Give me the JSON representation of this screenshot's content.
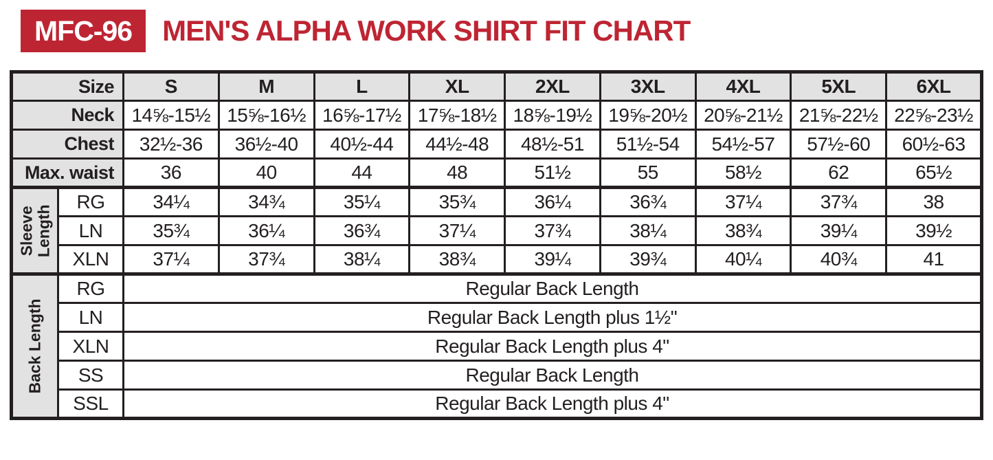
{
  "colors": {
    "accent": "#be2533",
    "cell_gray": "#e2e2e2",
    "border": "#231f20",
    "text": "#231f20"
  },
  "chart_data": {
    "type": "table",
    "code": "MFC-96",
    "title": "MEN'S ALPHA WORK SHIRT FIT CHART",
    "size_label": "Size",
    "columns": [
      "S",
      "M",
      "L",
      "XL",
      "2XL",
      "3XL",
      "4XL",
      "5XL",
      "6XL"
    ],
    "measurement_rows": [
      {
        "label": "Neck",
        "values": [
          "14⅝-15½",
          "15⅝-16½",
          "16⅝-17½",
          "17⅝-18½",
          "18⅝-19½",
          "19⅝-20½",
          "20⅝-21½",
          "21⅝-22½",
          "22⅝-23½"
        ]
      },
      {
        "label": "Chest",
        "values": [
          "32½-36",
          "36½-40",
          "40½-44",
          "44½-48",
          "48½-51",
          "51½-54",
          "54½-57",
          "57½-60",
          "60½-63"
        ]
      },
      {
        "label": "Max. waist",
        "values": [
          "36",
          "40",
          "44",
          "48",
          "51½",
          "55",
          "58½",
          "62",
          "65½"
        ]
      }
    ],
    "sleeve_section": {
      "label": "Sleeve Length",
      "rows": [
        {
          "label": "RG",
          "values": [
            "34¼",
            "34¾",
            "35¼",
            "35¾",
            "36¼",
            "36¾",
            "37¼",
            "37¾",
            "38"
          ]
        },
        {
          "label": "LN",
          "values": [
            "35¾",
            "36¼",
            "36¾",
            "37¼",
            "37¾",
            "38¼",
            "38¾",
            "39¼",
            "39½"
          ]
        },
        {
          "label": "XLN",
          "values": [
            "37¼",
            "37¾",
            "38¼",
            "38¾",
            "39¼",
            "39¾",
            "40¼",
            "40¾",
            "41"
          ]
        }
      ]
    },
    "back_section": {
      "label": "Back Length",
      "rows": [
        {
          "label": "RG",
          "value": "Regular Back Length"
        },
        {
          "label": "LN",
          "value": "Regular Back Length plus 1½\""
        },
        {
          "label": "XLN",
          "value": "Regular Back Length plus 4\""
        },
        {
          "label": "SS",
          "value": "Regular Back Length"
        },
        {
          "label": "SSL",
          "value": "Regular Back Length plus 4\""
        }
      ]
    }
  }
}
